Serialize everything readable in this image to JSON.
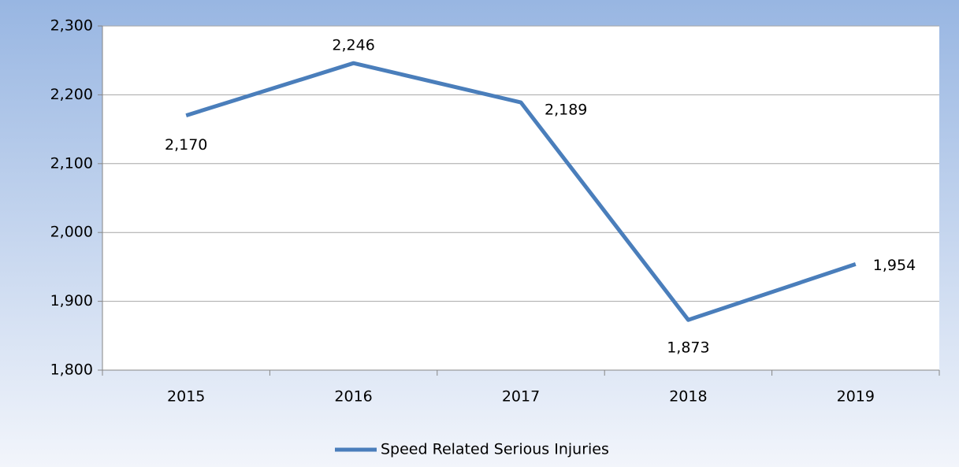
{
  "chart_data": {
    "type": "line",
    "categories": [
      "2015",
      "2016",
      "2017",
      "2018",
      "2019"
    ],
    "series": [
      {
        "name": "Speed Related Serious Injuries",
        "color": "#4a7ebb",
        "values": [
          2170,
          2246,
          2189,
          1873,
          1954
        ],
        "value_labels": [
          "2,170",
          "2,246",
          "2,189",
          "1,873",
          "1,954"
        ]
      }
    ],
    "ylim": [
      1800,
      2300
    ],
    "yticks": [
      {
        "value": 1800,
        "label": "1,800"
      },
      {
        "value": 1900,
        "label": "1,900"
      },
      {
        "value": 2000,
        "label": "2,000"
      },
      {
        "value": 2100,
        "label": "2,100"
      },
      {
        "value": 2200,
        "label": "2,200"
      },
      {
        "value": 2300,
        "label": "2,300"
      }
    ],
    "grid": true,
    "legend": "bottom"
  }
}
